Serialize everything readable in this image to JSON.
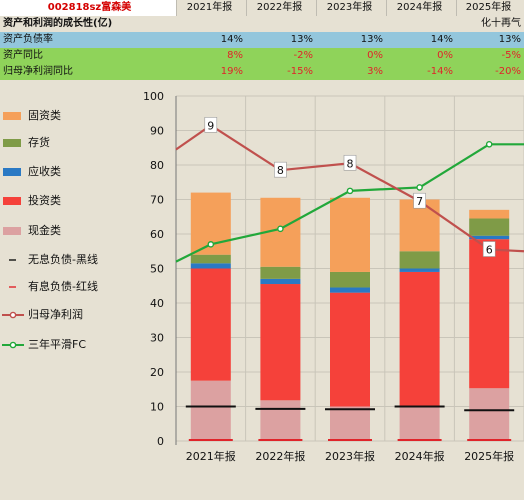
{
  "header": {
    "stock_code": "002818sz富森美",
    "years": [
      "2021年报",
      "2022年报",
      "2023年报",
      "2024年报",
      "2025年报"
    ]
  },
  "table": {
    "title": "资产和利润的成长性(亿)",
    "note": "化十再气",
    "rows": [
      {
        "label": "资产负债率",
        "values": [
          "14%",
          "13%",
          "13%",
          "14%",
          "13%"
        ],
        "color": "#111111",
        "bg": "#93c6dc"
      },
      {
        "label": "资产同比",
        "values": [
          "8%",
          "-2%",
          "0%",
          "0%",
          "-5%"
        ],
        "color": "#e0242a",
        "bg": "#8fd35a"
      },
      {
        "label": "归母净利润同比",
        "values": [
          "19%",
          "-15%",
          "3%",
          "-14%",
          "-20%"
        ],
        "color": "#e0242a",
        "bg": "#8fd35a"
      }
    ]
  },
  "legend": [
    {
      "label": "固资类",
      "icon": "orange-square-icon",
      "color": "#f5a05a"
    },
    {
      "label": "存货",
      "icon": "olive-square-icon",
      "color": "#7f9b47"
    },
    {
      "label": "应收类",
      "icon": "blue-square-icon",
      "color": "#2a79c4"
    },
    {
      "label": "投资类",
      "icon": "red-square-icon",
      "color": "#f5413a"
    },
    {
      "label": "现金类",
      "icon": "pink-square-icon",
      "color": "#dca1a1"
    },
    {
      "label": "无息负债-黑线",
      "icon": "black-dash-icon",
      "color": "#111111"
    },
    {
      "label": "有息负债-红线",
      "icon": "red-dash-icon",
      "color": "#e0242a"
    },
    {
      "label": "归母净利润",
      "icon": "red-line-marker-icon",
      "color": "#c0504d"
    },
    {
      "label": "三年平滑FC",
      "icon": "green-line-marker-icon",
      "color": "#22a83a"
    }
  ],
  "chart_data": {
    "type": "bar",
    "categories": [
      "2021年报",
      "2022年报",
      "2023年报",
      "2024年报",
      "2025年报"
    ],
    "ylim": [
      0,
      100
    ],
    "yticks": [
      "0",
      "10",
      "20",
      "30",
      "40",
      "50",
      "60",
      "70",
      "80",
      "90",
      "100"
    ],
    "stack_series": [
      {
        "name": "现金类",
        "values": [
          17.5,
          11.8,
          10,
          10,
          15.3
        ],
        "color": "#dca1a1"
      },
      {
        "name": "投资类",
        "values": [
          32.5,
          33.7,
          33,
          39,
          43.2
        ],
        "color": "#f5413a"
      },
      {
        "name": "应收类",
        "values": [
          1.5,
          1.5,
          1.5,
          1.0,
          1.0
        ],
        "color": "#2a79c4"
      },
      {
        "name": "存货",
        "values": [
          2.5,
          3.5,
          4.5,
          5.0,
          5.0
        ],
        "color": "#7f9b47"
      },
      {
        "name": "固资类",
        "values": [
          18,
          20,
          21.5,
          15,
          2.5
        ],
        "color": "#f5a05a"
      }
    ],
    "black_lines": {
      "name": "无息负债-黑线",
      "values": [
        10,
        9.3,
        9.2,
        10,
        8.9
      ]
    },
    "red_lines": {
      "name": "有息负债-红线",
      "values": [
        0,
        0,
        0,
        0,
        0
      ]
    },
    "profit_line": {
      "name": "归母净利润",
      "x": [
        -0.5,
        0,
        1,
        2,
        3,
        4,
        4.5
      ],
      "values": [
        84.5,
        91.5,
        78.5,
        80.5,
        69.5,
        55.5,
        55
      ],
      "labels": [
        "",
        "9",
        "8",
        "8",
        "7",
        "6",
        ""
      ],
      "color": "#c0504d"
    },
    "fc_line": {
      "name": "三年平滑FC",
      "x": [
        -0.5,
        0,
        1,
        2,
        3,
        4,
        4.5
      ],
      "values": [
        52,
        57,
        61.5,
        72.5,
        73.5,
        86,
        86
      ],
      "color": "#22a83a"
    }
  }
}
